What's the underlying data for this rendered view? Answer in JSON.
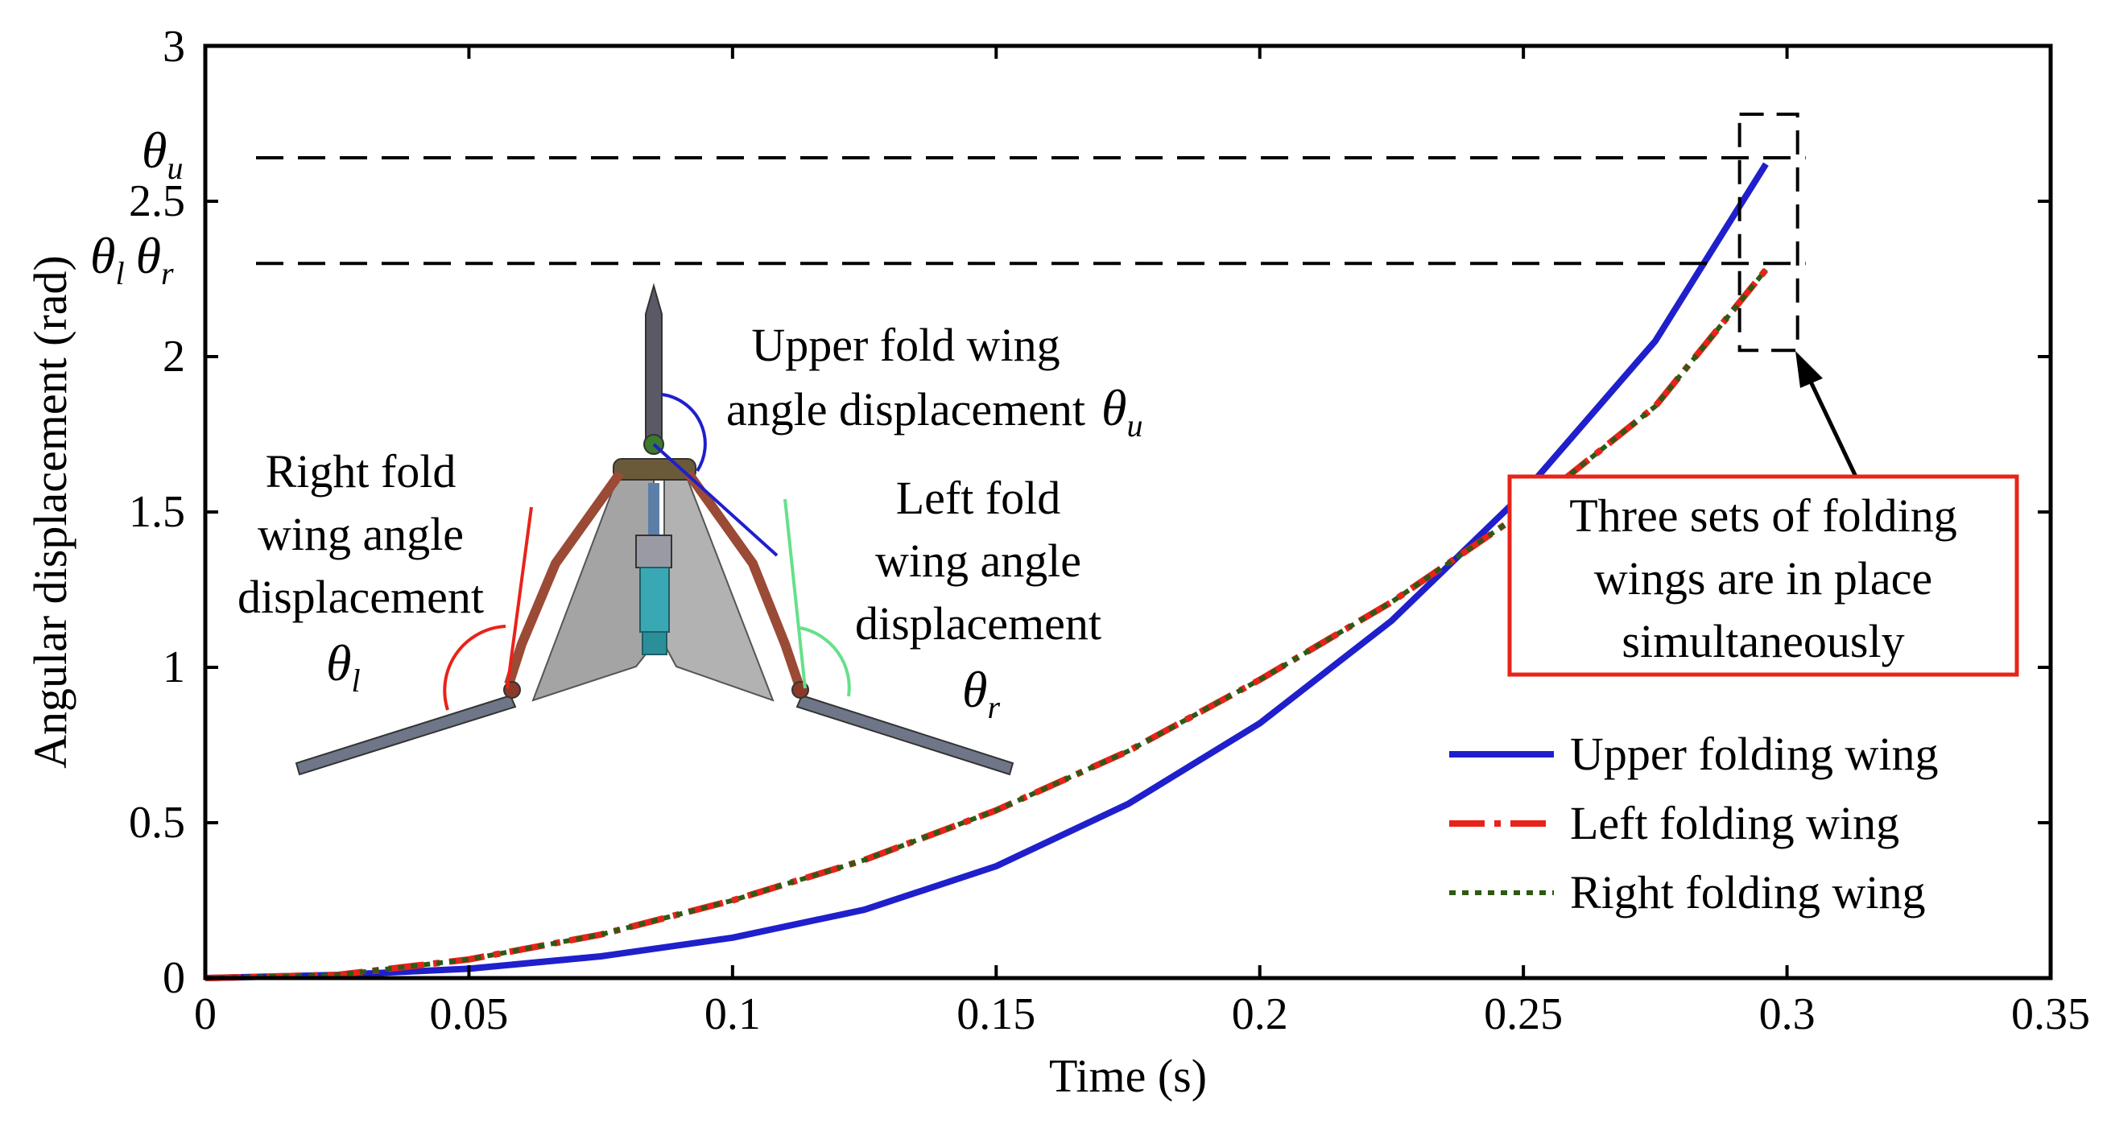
{
  "chart_data": {
    "type": "line",
    "title": "",
    "xlabel": "Time (s)",
    "ylabel": "Angular displacement (rad)",
    "xlim": [
      0,
      0.35
    ],
    "ylim": [
      0,
      3
    ],
    "x_ticks": [
      "0",
      "0.05",
      "0.1",
      "0.15",
      "0.2",
      "0.25",
      "0.3",
      "0.35"
    ],
    "y_ticks": [
      "0",
      "0.5",
      "1",
      "1.5",
      "2",
      "2.5",
      "3"
    ],
    "x_tick_values": [
      0,
      0.05,
      0.1,
      0.15,
      0.2,
      0.25,
      0.3,
      0.35
    ],
    "y_tick_values": [
      0,
      0.5,
      1,
      1.5,
      2,
      2.5,
      3
    ],
    "grid": false,
    "legend_position": "bottom-right",
    "series": [
      {
        "name": "Upper folding wing",
        "color": "#1f1fcc",
        "style": "solid",
        "x": [
          0,
          0.025,
          0.05,
          0.075,
          0.1,
          0.125,
          0.15,
          0.175,
          0.2,
          0.225,
          0.25,
          0.275,
          0.296
        ],
        "y": [
          0,
          0.01,
          0.03,
          0.07,
          0.13,
          0.22,
          0.36,
          0.56,
          0.82,
          1.15,
          1.56,
          2.05,
          2.62
        ]
      },
      {
        "name": "Left folding wing",
        "color": "#e8231a",
        "style": "dashdot",
        "x": [
          0,
          0.025,
          0.05,
          0.075,
          0.1,
          0.125,
          0.15,
          0.175,
          0.2,
          0.225,
          0.25,
          0.275,
          0.296
        ],
        "y": [
          0,
          0.01,
          0.06,
          0.14,
          0.25,
          0.38,
          0.54,
          0.73,
          0.96,
          1.21,
          1.5,
          1.84,
          2.28
        ]
      },
      {
        "name": "Right folding wing",
        "color": "#2e5a14",
        "style": "dotted",
        "x": [
          0,
          0.025,
          0.05,
          0.075,
          0.1,
          0.125,
          0.15,
          0.175,
          0.2,
          0.225,
          0.25,
          0.275,
          0.296
        ],
        "y": [
          0,
          0.01,
          0.06,
          0.14,
          0.25,
          0.38,
          0.54,
          0.73,
          0.96,
          1.21,
          1.5,
          1.84,
          2.28
        ]
      }
    ],
    "reference_lines": [
      {
        "label_main": "θ",
        "label_sub": "u",
        "y": 2.64
      },
      {
        "label_main": "θ",
        "label_sub": "l",
        "label_main2": "θ",
        "label_sub2": "r",
        "y": 2.3
      }
    ],
    "highlight_box": {
      "x_range": [
        0.291,
        0.302
      ],
      "y_range": [
        2.02,
        2.78
      ]
    },
    "callout": {
      "lines": [
        "Three sets of folding",
        "wings are in place",
        "simultaneously"
      ],
      "border_color": "#e8231a"
    },
    "annotations": {
      "upper": {
        "lines": [
          "Upper fold wing",
          "angle displacement"
        ],
        "symbol": "θ",
        "symbol_sub": "u"
      },
      "right": {
        "lines": [
          "Right fold",
          "wing angle",
          "displacement"
        ],
        "symbol": "θ",
        "symbol_sub": "l"
      },
      "left": {
        "lines": [
          "Left fold",
          "wing angle",
          "displacement"
        ],
        "symbol": "θ",
        "symbol_sub": "r"
      }
    }
  }
}
